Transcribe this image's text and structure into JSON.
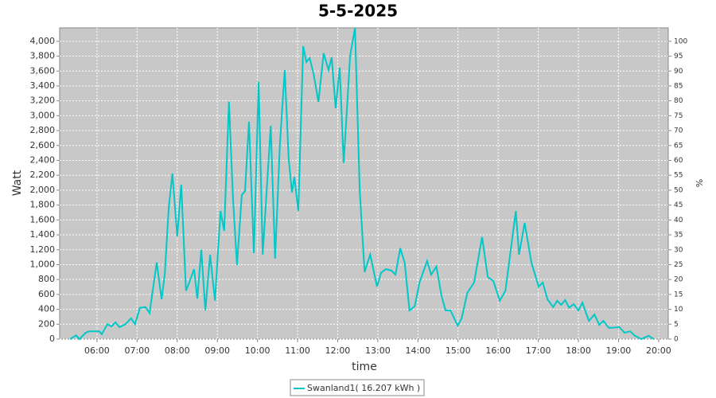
{
  "chart_data": {
    "type": "line",
    "title": "5-5-2025",
    "x_label": "time",
    "y_label": "Watt",
    "y2_label": "%",
    "x": [
      5.33,
      5.48,
      5.56,
      5.72,
      5.8,
      6.06,
      6.12,
      6.26,
      6.36,
      6.46,
      6.56,
      6.71,
      6.85,
      6.95,
      7.07,
      7.21,
      7.31,
      7.49,
      7.61,
      7.69,
      7.79,
      7.88,
      8.0,
      8.1,
      8.22,
      8.3,
      8.42,
      8.5,
      8.6,
      8.7,
      8.82,
      8.94,
      9.08,
      9.17,
      9.29,
      9.39,
      9.49,
      9.61,
      9.69,
      9.79,
      9.91,
      10.03,
      10.13,
      10.33,
      10.44,
      10.56,
      10.68,
      10.78,
      10.86,
      10.92,
      11.02,
      11.14,
      11.22,
      11.3,
      11.4,
      11.52,
      11.65,
      11.77,
      11.85,
      11.95,
      12.05,
      12.15,
      12.31,
      12.43,
      12.55,
      12.67,
      12.81,
      12.98,
      13.08,
      13.2,
      13.34,
      13.44,
      13.56,
      13.67,
      13.79,
      13.92,
      14.04,
      14.23,
      14.33,
      14.46,
      14.59,
      14.69,
      14.81,
      14.99,
      15.09,
      15.23,
      15.4,
      15.6,
      15.74,
      15.88,
      16.04,
      16.18,
      16.44,
      16.52,
      16.66,
      16.83,
      17.01,
      17.11,
      17.23,
      17.37,
      17.47,
      17.57,
      17.67,
      17.77,
      17.88,
      18.0,
      18.1,
      18.26,
      18.4,
      18.52,
      18.62,
      18.76,
      19.02,
      19.15,
      19.29,
      19.41,
      19.57,
      19.75,
      19.88
    ],
    "series": [
      {
        "name": "Swanland1( 16.207 kWh )",
        "color": "#00c8c8",
        "values": [
          0,
          50,
          0,
          85,
          105,
          105,
          65,
          200,
          170,
          225,
          160,
          200,
          280,
          200,
          420,
          430,
          350,
          1030,
          535,
          870,
          1775,
          2225,
          1380,
          2075,
          650,
          760,
          940,
          545,
          1200,
          385,
          1135,
          515,
          1720,
          1455,
          3190,
          1880,
          995,
          1935,
          1990,
          2920,
          1155,
          3455,
          1135,
          2865,
          1080,
          2630,
          3615,
          2415,
          1970,
          2180,
          1720,
          3935,
          3720,
          3775,
          3560,
          3185,
          3840,
          3615,
          3785,
          3100,
          3645,
          2365,
          3805,
          4180,
          1990,
          900,
          1135,
          705,
          890,
          940,
          920,
          865,
          1220,
          1025,
          385,
          440,
          760,
          1050,
          865,
          975,
          575,
          385,
          385,
          180,
          280,
          620,
          760,
          1370,
          835,
          780,
          515,
          650,
          1720,
          1135,
          1560,
          1025,
          705,
          760,
          535,
          430,
          515,
          460,
          525,
          420,
          470,
          385,
          490,
          245,
          330,
          190,
          245,
          150,
          160,
          85,
          105,
          45,
          0,
          45,
          0
        ]
      }
    ],
    "xlim": [
      5.07,
      20.24
    ],
    "xticks": [
      {
        "value": 6,
        "label": "06:00"
      },
      {
        "value": 7,
        "label": "07:00"
      },
      {
        "value": 8,
        "label": "08:00"
      },
      {
        "value": 9,
        "label": "09:00"
      },
      {
        "value": 10,
        "label": "10:00"
      },
      {
        "value": 11,
        "label": "11:00"
      },
      {
        "value": 12,
        "label": "12:00"
      },
      {
        "value": 13,
        "label": "13:00"
      },
      {
        "value": 14,
        "label": "14:00"
      },
      {
        "value": 15,
        "label": "15:00"
      },
      {
        "value": 16,
        "label": "16:00"
      },
      {
        "value": 17,
        "label": "17:00"
      },
      {
        "value": 18,
        "label": "18:00"
      },
      {
        "value": 19,
        "label": "19:00"
      },
      {
        "value": 20,
        "label": "20:00"
      }
    ],
    "ylim": [
      0,
      4180
    ],
    "yticks": [
      0,
      200,
      400,
      600,
      800,
      {
        "value": 1000,
        "label": "1,000"
      },
      {
        "value": 1200,
        "label": "1,200"
      },
      {
        "value": 1400,
        "label": "1,400"
      },
      {
        "value": 1600,
        "label": "1,600"
      },
      {
        "value": 1800,
        "label": "1,800"
      },
      {
        "value": 2000,
        "label": "2,000"
      },
      {
        "value": 2200,
        "label": "2,200"
      },
      {
        "value": 2400,
        "label": "2,400"
      },
      {
        "value": 2600,
        "label": "2,600"
      },
      {
        "value": 2800,
        "label": "2,800"
      },
      {
        "value": 3000,
        "label": "3,000"
      },
      {
        "value": 3200,
        "label": "3,200"
      },
      {
        "value": 3400,
        "label": "3,400"
      },
      {
        "value": 3600,
        "label": "3,600"
      },
      {
        "value": 3800,
        "label": "3,800"
      },
      {
        "value": 4000,
        "label": "4,000"
      }
    ],
    "y2lim": [
      0,
      104.5
    ],
    "y2ticks": [
      0,
      5,
      10,
      15,
      20,
      25,
      30,
      35,
      40,
      45,
      50,
      55,
      60,
      65,
      70,
      75,
      80,
      85,
      90,
      95,
      100
    ],
    "grid": true,
    "legend": "bottom"
  }
}
